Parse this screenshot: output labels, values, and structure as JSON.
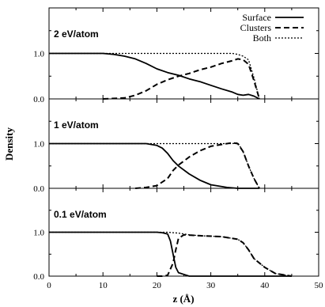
{
  "chart_data": {
    "type": "line",
    "xlabel": "z (Å)",
    "ylabel": "Density",
    "xlim": [
      0,
      50
    ],
    "ylim": [
      0,
      2
    ],
    "x_ticks": [
      "0",
      "10",
      "20",
      "30",
      "40",
      "50"
    ],
    "y_ticks": [
      "0.0",
      "1.0"
    ],
    "legend": {
      "placement": "top-right",
      "entries": [
        {
          "name": "Surface",
          "style": "solid"
        },
        {
          "name": "Clusters",
          "style": "dashed"
        },
        {
          "name": "Both",
          "style": "dotted"
        }
      ]
    },
    "panels": [
      {
        "label": "2 eV/atom",
        "series": [
          {
            "name": "Surface",
            "style": "solid",
            "points": [
              [
                0,
                1.0
              ],
              [
                10,
                1.0
              ],
              [
                12,
                0.98
              ],
              [
                14,
                0.94
              ],
              [
                16,
                0.88
              ],
              [
                18,
                0.78
              ],
              [
                20,
                0.66
              ],
              [
                22,
                0.58
              ],
              [
                24,
                0.52
              ],
              [
                26,
                0.44
              ],
              [
                28,
                0.38
              ],
              [
                30,
                0.3
              ],
              [
                32,
                0.22
              ],
              [
                34,
                0.15
              ],
              [
                35,
                0.1
              ],
              [
                36,
                0.08
              ],
              [
                37,
                0.1
              ],
              [
                38,
                0.06
              ],
              [
                39,
                0.0
              ]
            ]
          },
          {
            "name": "Clusters",
            "style": "dashed",
            "points": [
              [
                10,
                0.0
              ],
              [
                14,
                0.02
              ],
              [
                16,
                0.08
              ],
              [
                18,
                0.18
              ],
              [
                20,
                0.32
              ],
              [
                22,
                0.42
              ],
              [
                24,
                0.5
              ],
              [
                26,
                0.56
              ],
              [
                28,
                0.64
              ],
              [
                30,
                0.7
              ],
              [
                32,
                0.78
              ],
              [
                34,
                0.84
              ],
              [
                35,
                0.88
              ],
              [
                36,
                0.86
              ],
              [
                37,
                0.76
              ],
              [
                38,
                0.4
              ],
              [
                39,
                0.0
              ]
            ]
          },
          {
            "name": "Both",
            "style": "dotted",
            "points": [
              [
                0,
                1.0
              ],
              [
                34,
                1.0
              ],
              [
                35,
                0.98
              ],
              [
                36,
                0.94
              ],
              [
                37,
                0.86
              ],
              [
                38,
                0.46
              ],
              [
                39,
                0.0
              ]
            ]
          }
        ]
      },
      {
        "label": "1 eV/atom",
        "series": [
          {
            "name": "Surface",
            "style": "solid",
            "points": [
              [
                0,
                1.0
              ],
              [
                18,
                1.0
              ],
              [
                20,
                0.96
              ],
              [
                21,
                0.9
              ],
              [
                22,
                0.78
              ],
              [
                23,
                0.62
              ],
              [
                24,
                0.5
              ],
              [
                26,
                0.32
              ],
              [
                28,
                0.18
              ],
              [
                30,
                0.08
              ],
              [
                33,
                0.02
              ],
              [
                35,
                0.0
              ],
              [
                39,
                0.0
              ]
            ]
          },
          {
            "name": "Clusters",
            "style": "dashed",
            "points": [
              [
                16,
                0.0
              ],
              [
                18,
                0.02
              ],
              [
                20,
                0.06
              ],
              [
                22,
                0.22
              ],
              [
                23,
                0.4
              ],
              [
                24,
                0.52
              ],
              [
                26,
                0.7
              ],
              [
                28,
                0.84
              ],
              [
                30,
                0.94
              ],
              [
                32,
                0.98
              ],
              [
                34,
                1.02
              ],
              [
                35,
                1.0
              ],
              [
                36,
                0.82
              ],
              [
                37,
                0.5
              ],
              [
                38,
                0.22
              ],
              [
                39,
                0.0
              ]
            ]
          },
          {
            "name": "Both",
            "style": "dotted",
            "points": [
              [
                0,
                1.0
              ],
              [
                34,
                1.0
              ],
              [
                35,
                1.02
              ],
              [
                36,
                0.82
              ],
              [
                37,
                0.5
              ],
              [
                38,
                0.22
              ],
              [
                39,
                0.0
              ]
            ]
          }
        ]
      },
      {
        "label": "0.1 eV/atom",
        "series": [
          {
            "name": "Surface",
            "style": "solid",
            "points": [
              [
                0,
                1.0
              ],
              [
                20,
                1.0
              ],
              [
                21,
                0.99
              ],
              [
                22,
                0.96
              ],
              [
                22.5,
                0.8
              ],
              [
                23,
                0.5
              ],
              [
                23.5,
                0.2
              ],
              [
                24,
                0.08
              ],
              [
                25,
                0.04
              ],
              [
                26,
                0.0
              ],
              [
                45,
                0.0
              ]
            ]
          },
          {
            "name": "Clusters",
            "style": "dashed",
            "points": [
              [
                20,
                0.0
              ],
              [
                21,
                0.0
              ],
              [
                22,
                0.02
              ],
              [
                23,
                0.3
              ],
              [
                23.5,
                0.6
              ],
              [
                24,
                0.86
              ],
              [
                25,
                0.94
              ],
              [
                28,
                0.92
              ],
              [
                32,
                0.9
              ],
              [
                35,
                0.84
              ],
              [
                36,
                0.76
              ],
              [
                37,
                0.6
              ],
              [
                38,
                0.4
              ],
              [
                40,
                0.2
              ],
              [
                42,
                0.06
              ],
              [
                44,
                0.02
              ],
              [
                45,
                0.0
              ]
            ]
          },
          {
            "name": "Both",
            "style": "dotted",
            "points": [
              [
                0,
                1.0
              ],
              [
                22,
                1.0
              ],
              [
                23,
                0.99
              ],
              [
                24,
                0.98
              ],
              [
                26,
                0.94
              ],
              [
                28,
                0.92
              ],
              [
                32,
                0.9
              ],
              [
                35,
                0.84
              ],
              [
                36,
                0.76
              ],
              [
                37,
                0.6
              ],
              [
                38,
                0.4
              ],
              [
                40,
                0.2
              ],
              [
                42,
                0.06
              ],
              [
                44,
                0.02
              ],
              [
                45,
                0.0
              ]
            ]
          }
        ]
      }
    ]
  }
}
